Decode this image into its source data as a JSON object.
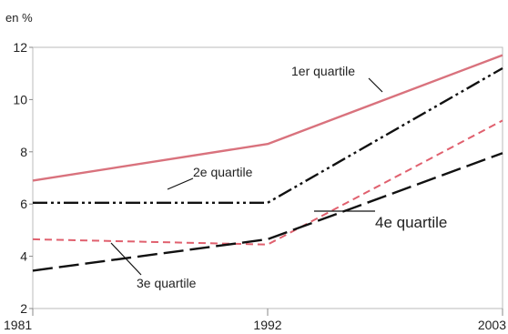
{
  "chart_data": {
    "type": "line",
    "unit_label": "en %",
    "x": [
      1981,
      1992,
      2003
    ],
    "x_tick_labels": [
      "1981",
      "1992",
      "2003"
    ],
    "ylim": [
      2,
      12
    ],
    "y_ticks": [
      2,
      4,
      6,
      8,
      10,
      12
    ],
    "y_tick_labels": [
      "2",
      "4",
      "6",
      "8",
      "10",
      "12"
    ],
    "grid": false,
    "series": [
      {
        "name": "1er quartile",
        "values": [
          6.9,
          8.3,
          11.7
        ],
        "color": "#d9727d",
        "style": "solid"
      },
      {
        "name": "2e quartile",
        "values": [
          6.05,
          6.05,
          11.2
        ],
        "color": "#111111",
        "style": "dash-dot-dot"
      },
      {
        "name": "3e quartile",
        "values": [
          4.65,
          4.45,
          9.2
        ],
        "color": "#e0606e",
        "style": "dashed"
      },
      {
        "name": "4e quartile",
        "values": [
          3.45,
          4.65,
          7.95
        ],
        "color": "#111111",
        "style": "long-dash"
      }
    ]
  }
}
